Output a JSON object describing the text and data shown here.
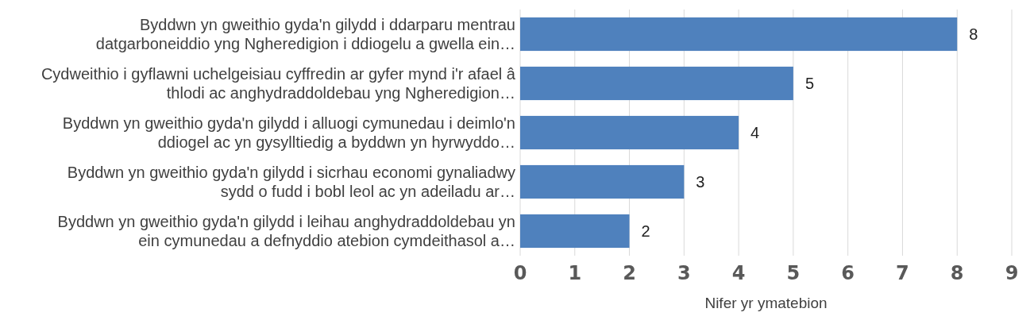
{
  "chart_data": {
    "type": "bar",
    "orientation": "horizontal",
    "categories": [
      "Byddwn yn gweithio gyda'n gilydd i ddarparu mentrau datgarboneiddio yng Ngheredigion i ddiogelu a gwella ein…",
      "Cydweithio i gyflawni uchelgeisiau cyffredin ar gyfer mynd i'r afael â thlodi ac anghydraddoldebau yng Ngheredigion…",
      "Byddwn yn gweithio gyda'n gilydd i alluogi cymunedau i deimlo'n ddiogel ac yn gysylltiedig a byddwn yn hyrwyddo…",
      "Byddwn yn gweithio gyda'n gilydd i sicrhau economi gynaliadwy sydd o fudd i bobl leol ac yn adeiladu ar…",
      "Byddwn yn gweithio gyda'n gilydd i leihau anghydraddoldebau yn ein cymunedau a defnyddio atebion cymdeithasol a…"
    ],
    "values": [
      8,
      5,
      4,
      3,
      2
    ],
    "color": "#4f81bd",
    "xlim": [
      0,
      9
    ],
    "xticks": [
      0,
      1,
      2,
      3,
      4,
      5,
      6,
      7,
      8,
      9
    ],
    "xlabel": "Nifer yr ymatebion",
    "grid": "x",
    "data_labels": true
  }
}
